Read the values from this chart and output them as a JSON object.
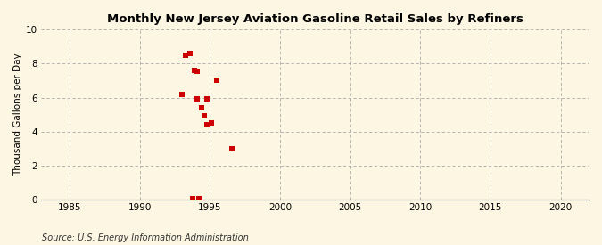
{
  "title": "Monthly New Jersey Aviation Gasoline Retail Sales by Refiners",
  "ylabel": "Thousand Gallons per Day",
  "source": "Source: U.S. Energy Information Administration",
  "background_color": "#fdf6e3",
  "xlim": [
    1983,
    2022
  ],
  "ylim": [
    0,
    10
  ],
  "xticks": [
    1985,
    1990,
    1995,
    2000,
    2005,
    2010,
    2015,
    2020
  ],
  "yticks": [
    0,
    2,
    4,
    6,
    8,
    10
  ],
  "scatter_color": "#cc0000",
  "marker_size": 18,
  "x_data": [
    1993.0,
    1993.3,
    1993.6,
    1993.9,
    1994.1,
    1994.1,
    1994.4,
    1994.6,
    1994.8,
    1994.8,
    1995.1,
    1995.5,
    1996.6,
    1993.8,
    1994.2
  ],
  "y_data": [
    6.2,
    8.5,
    8.6,
    7.6,
    7.55,
    5.9,
    5.4,
    4.9,
    5.9,
    4.4,
    4.5,
    7.0,
    3.0,
    0.05,
    0.05
  ]
}
